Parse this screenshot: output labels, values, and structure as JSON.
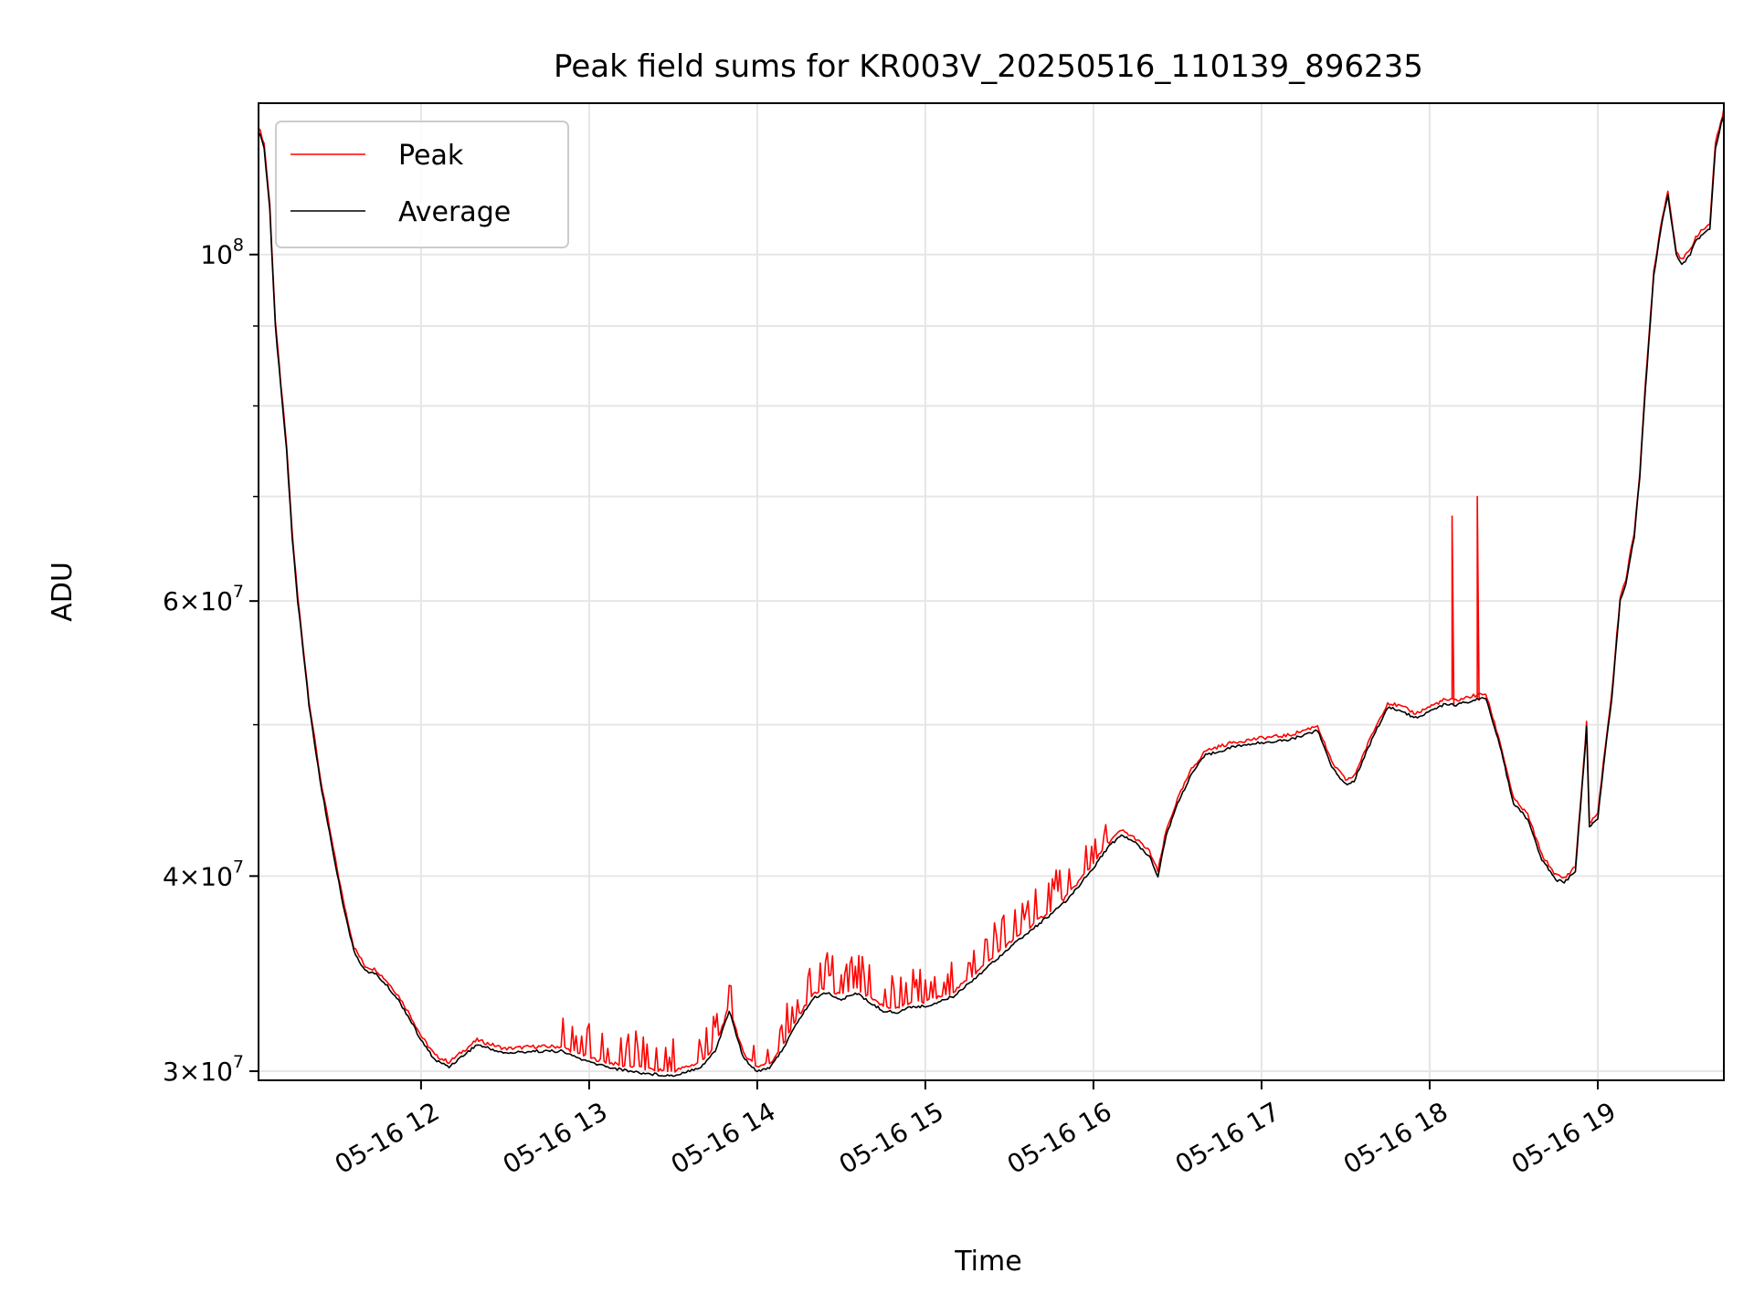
{
  "chart_data": {
    "type": "line",
    "title": "Peak field sums for KR003V_20250516_110139_896235",
    "xlabel": "Time",
    "ylabel": "ADU",
    "yscale": "log",
    "xlim": [
      "2025-05-16 11:02",
      "2025-05-16 19:45"
    ],
    "ylim": [
      29600000,
      125000000
    ],
    "x_ticks": [
      "05-16 12",
      "05-16 13",
      "05-16 14",
      "05-16 15",
      "05-16 16",
      "05-16 17",
      "05-16 18",
      "05-16 19"
    ],
    "y_ticks": [
      {
        "mantissa": "3",
        "exponent": "7"
      },
      {
        "mantissa": "4",
        "exponent": "7"
      },
      {
        "mantissa": "6",
        "exponent": "7"
      },
      {
        "mantissa": "",
        "exponent": "8"
      }
    ],
    "grid": true,
    "legend_position": "upper-left",
    "series": [
      {
        "name": "Peak",
        "color": "#ff0000"
      },
      {
        "name": "Average",
        "color": "#000000"
      }
    ],
    "average_series": {
      "x": [
        "11:02",
        "11:04",
        "11:06",
        "11:08",
        "11:10",
        "11:12",
        "11:14",
        "11:16",
        "11:20",
        "11:24",
        "11:28",
        "11:32",
        "11:36",
        "11:40",
        "11:44",
        "11:48",
        "11:52",
        "11:56",
        "12:00",
        "12:05",
        "12:10",
        "12:15",
        "12:20",
        "12:25",
        "12:30",
        "12:40",
        "12:50",
        "13:00",
        "13:10",
        "13:20",
        "13:30",
        "13:40",
        "13:45",
        "13:50",
        "13:55",
        "14:00",
        "14:05",
        "14:10",
        "14:15",
        "14:20",
        "14:25",
        "14:30",
        "14:35",
        "14:40",
        "14:45",
        "14:50",
        "14:55",
        "15:00",
        "15:10",
        "15:20",
        "15:30",
        "15:40",
        "15:50",
        "16:00",
        "16:05",
        "16:10",
        "16:15",
        "16:20",
        "16:23",
        "16:26",
        "16:30",
        "16:35",
        "16:40",
        "16:50",
        "17:00",
        "17:10",
        "17:20",
        "17:25",
        "17:30",
        "17:33",
        "17:36",
        "17:40",
        "17:45",
        "17:50",
        "17:55",
        "18:00",
        "18:05",
        "18:10",
        "18:15",
        "18:20",
        "18:25",
        "18:30",
        "18:35",
        "18:40",
        "18:45",
        "18:48",
        "18:52",
        "18:55",
        "18:56",
        "18:57",
        "19:00",
        "19:02",
        "19:05",
        "19:08",
        "19:10",
        "19:13",
        "19:15",
        "19:17",
        "19:20",
        "19:23",
        "19:25",
        "19:28",
        "19:30",
        "19:33",
        "19:35",
        "19:40",
        "19:42",
        "19:44",
        "19:45"
      ],
      "y": [
        120000000,
        117000000,
        107000000,
        90000000,
        82000000,
        75000000,
        66000000,
        60000000,
        51500000,
        46000000,
        42000000,
        38500000,
        35800000,
        34800000,
        34600000,
        34000000,
        33300000,
        32400000,
        31400000,
        30500000,
        30200000,
        30700000,
        31200000,
        31000000,
        30800000,
        30900000,
        30900000,
        30400000,
        30100000,
        29900000,
        29800000,
        30200000,
        30900000,
        32800000,
        30600000,
        30000000,
        30200000,
        31200000,
        32400000,
        33400000,
        33700000,
        33300000,
        33700000,
        33200000,
        32800000,
        32700000,
        33000000,
        33000000,
        33500000,
        34700000,
        36000000,
        37200000,
        38500000,
        40500000,
        41700000,
        42500000,
        42000000,
        41200000,
        40000000,
        42500000,
        44500000,
        46500000,
        47800000,
        48400000,
        48700000,
        48900000,
        49600000,
        47000000,
        45800000,
        46000000,
        47400000,
        49200000,
        51300000,
        51000000,
        50500000,
        51000000,
        51500000,
        51500000,
        51800000,
        52000000,
        48500000,
        44500000,
        43500000,
        41000000,
        39800000,
        39600000,
        40300000,
        47000000,
        49800000,
        43000000,
        43500000,
        47000000,
        52000000,
        60000000,
        61500000,
        66000000,
        72000000,
        82000000,
        97000000,
        105000000,
        109000000,
        100000000,
        98500000,
        100000000,
        102000000,
        104000000,
        117000000,
        121000000,
        123000000
      ]
    }
  }
}
